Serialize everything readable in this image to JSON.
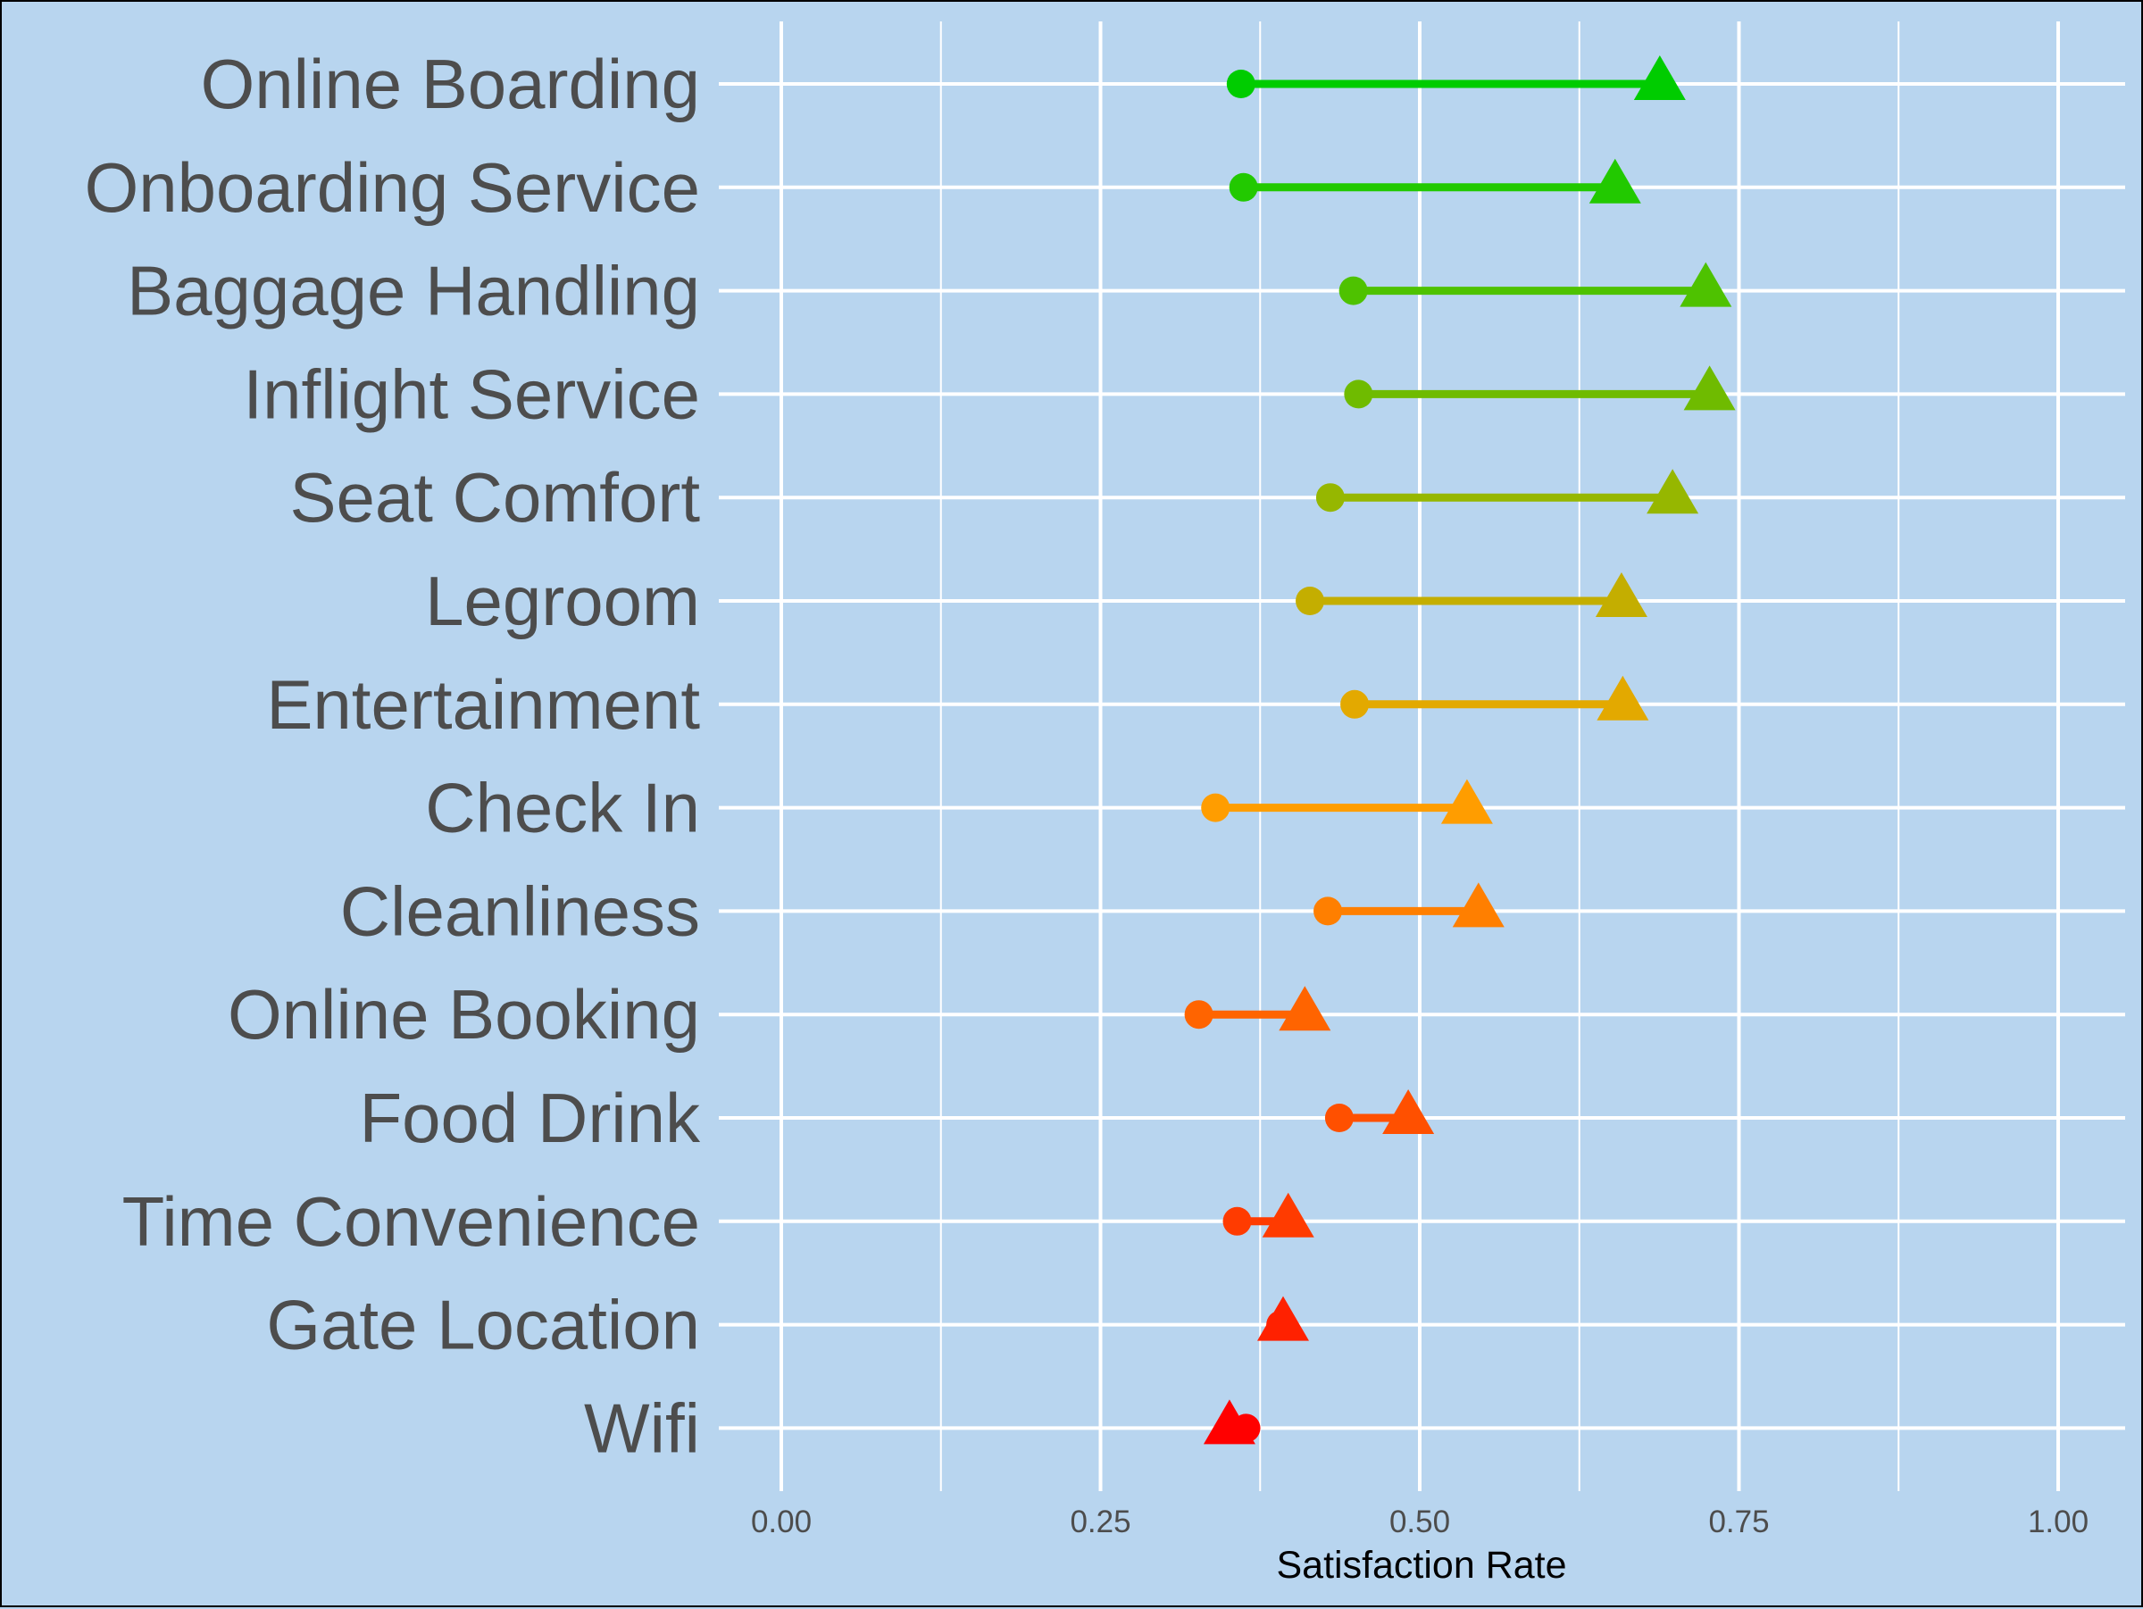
{
  "chart_data": {
    "type": "dumbbell",
    "title": "",
    "xlabel": "Satisfaction Rate",
    "ylabel": "",
    "xlim": [
      -0.1,
      1.05
    ],
    "x_ticks": [
      "0.00",
      "0.25",
      "0.50",
      "0.75",
      "1.00"
    ],
    "x_tick_values": [
      0,
      0.25,
      0.5,
      0.75,
      1.0
    ],
    "grid": true,
    "legend": "none",
    "categories": [
      "Online Boarding",
      "Onboarding Service",
      "Baggage Handling",
      "Inflight Service",
      "Seat Comfort",
      "Legroom",
      "Entertainment",
      "Check In",
      "Cleanliness",
      "Online Booking",
      "Food Drink",
      "Time Convenience",
      "Gate Location",
      "Wifi"
    ],
    "series": [
      {
        "marker": "circle",
        "values": [
          0.36,
          0.362,
          0.448,
          0.452,
          0.43,
          0.414,
          0.449,
          0.34,
          0.428,
          0.327,
          0.437,
          0.357,
          0.391,
          0.364
        ]
      },
      {
        "marker": "triangle",
        "values": [
          0.688,
          0.653,
          0.724,
          0.727,
          0.698,
          0.658,
          0.659,
          0.537,
          0.546,
          0.41,
          0.491,
          0.397,
          0.393,
          0.351
        ]
      }
    ],
    "colors": [
      "#00cc00",
      "#22c900",
      "#4ec200",
      "#6fbb00",
      "#96b700",
      "#c4ae00",
      "#e3a900",
      "#ff9d00",
      "#ff7f00",
      "#ff6400",
      "#ff5000",
      "#ff3b00",
      "#ff2100",
      "#ff0000"
    ]
  }
}
